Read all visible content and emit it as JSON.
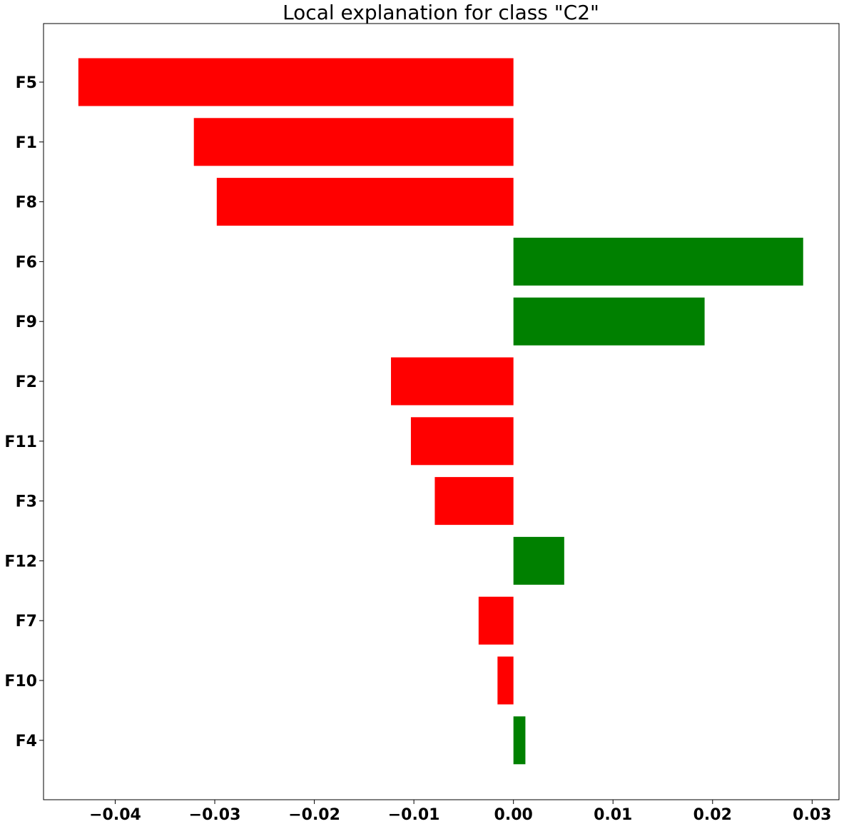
{
  "chart_data": {
    "type": "bar",
    "orientation": "horizontal",
    "title": "Local explanation for class \"C2\"",
    "xlabel": "",
    "ylabel": "",
    "categories": [
      "F5",
      "F1",
      "F8",
      "F6",
      "F9",
      "F2",
      "F11",
      "F3",
      "F12",
      "F7",
      "F10",
      "F4"
    ],
    "values": [
      -0.0437,
      -0.0321,
      -0.0298,
      0.0291,
      0.0192,
      -0.0123,
      -0.0103,
      -0.0079,
      0.0051,
      -0.0035,
      -0.0016,
      0.0012
    ],
    "positive_color": "#008000",
    "negative_color": "#ff0000",
    "xlim": [
      -0.0472,
      0.0327
    ],
    "xticks": [
      -0.04,
      -0.03,
      -0.02,
      -0.01,
      0.0,
      0.01,
      0.02,
      0.03
    ],
    "xtick_labels": [
      "−0.04",
      "−0.03",
      "−0.02",
      "−0.01",
      "0.00",
      "0.01",
      "0.02",
      "0.03"
    ],
    "grid": false,
    "legend": "none"
  }
}
